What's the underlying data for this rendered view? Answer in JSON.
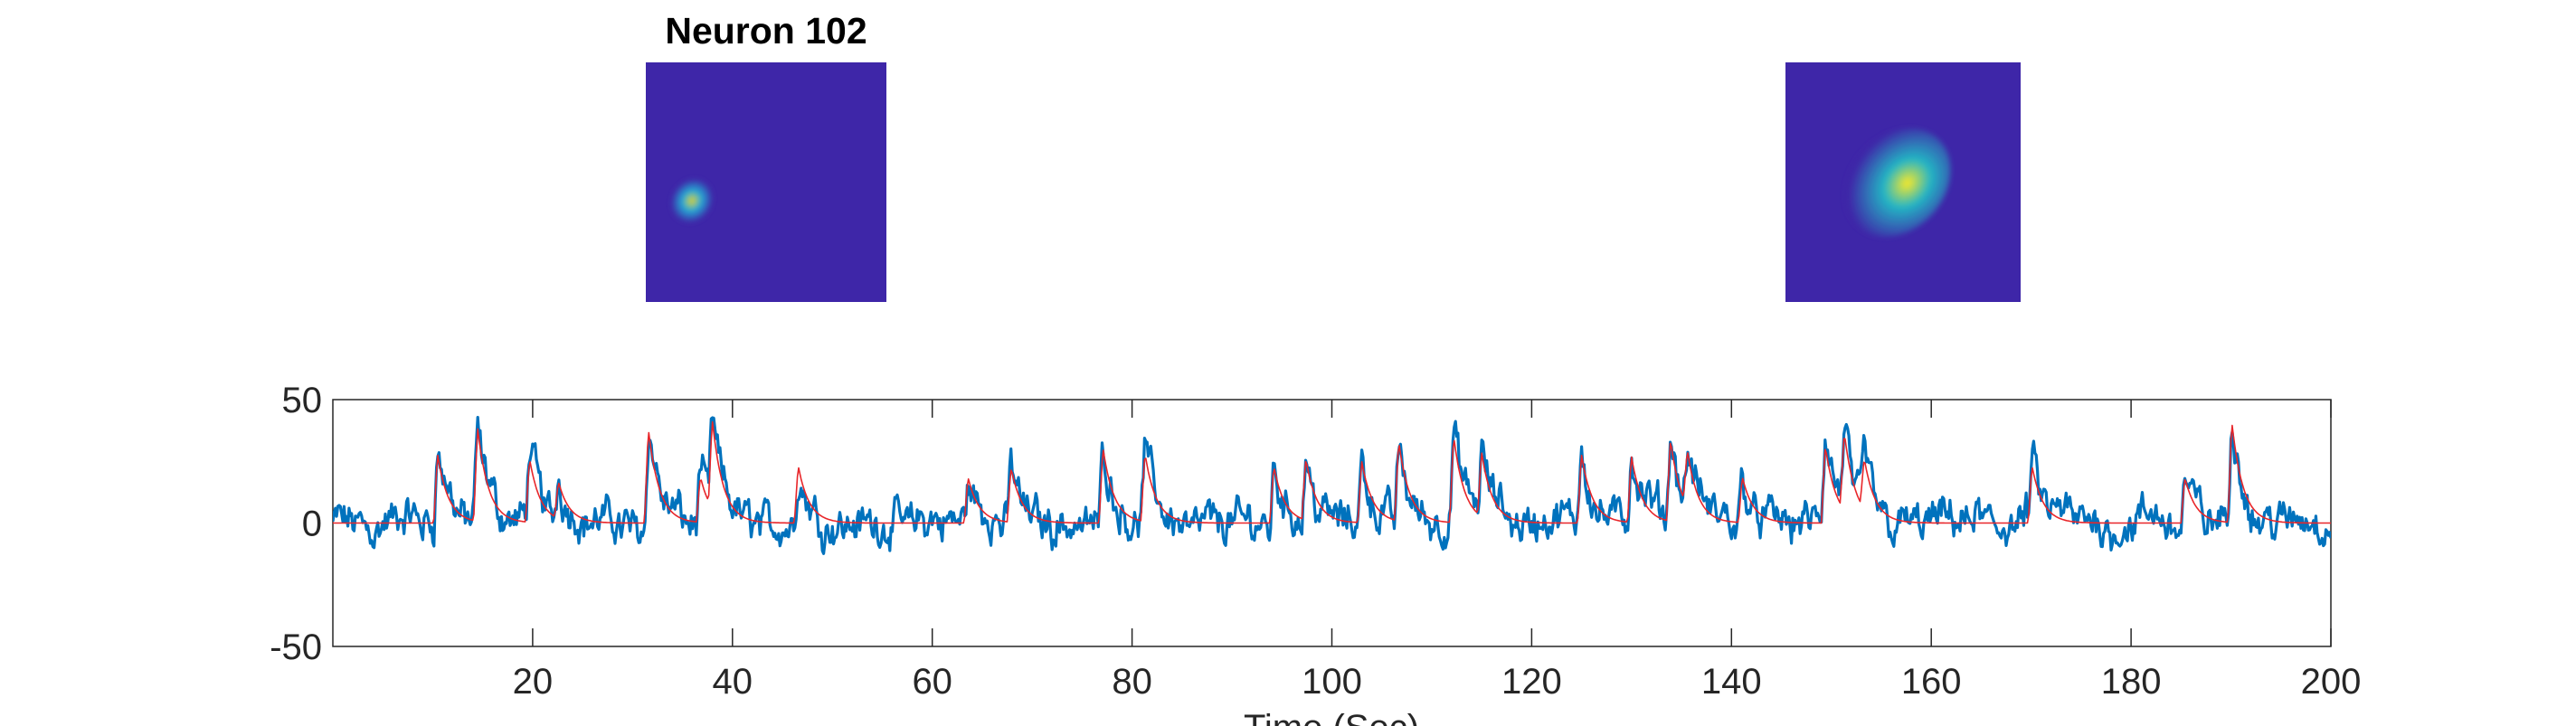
{
  "panels": {
    "left_title": "Neuron 102",
    "left_colors": {
      "background": "#3e26a8",
      "blob_mid": "#23a9d7",
      "blob_peak": "#e5d32b"
    },
    "right_colors": {
      "background": "#3e26a8",
      "blob_mid": "#24b5c4",
      "blob_peak": "#f9e926"
    }
  },
  "chart_data": {
    "type": "line",
    "title": "",
    "xlabel": "Time (Sec)",
    "ylabel": "",
    "xlim": [
      0,
      200
    ],
    "ylim": [
      -50,
      50
    ],
    "xticks": [
      20,
      40,
      60,
      80,
      100,
      120,
      140,
      160,
      180,
      200
    ],
    "yticks": [
      -50,
      0,
      50
    ],
    "grid": false,
    "series": [
      {
        "role": "raw-trace",
        "color": "#0072bd",
        "description_of_shape": "noisy fluorescence trace oscillating around 0 with transient peaks",
        "peaks": [
          {
            "x": 10.4,
            "y": 35
          },
          {
            "x": 14.4,
            "y": 38
          },
          {
            "x": 19.6,
            "y": 35
          },
          {
            "x": 22.5,
            "y": 20
          },
          {
            "x": 31.5,
            "y": 47
          },
          {
            "x": 36.7,
            "y": 23
          },
          {
            "x": 37.9,
            "y": 37
          },
          {
            "x": 46.5,
            "y": 22
          },
          {
            "x": 63.5,
            "y": 18
          },
          {
            "x": 67.8,
            "y": 27
          },
          {
            "x": 77.0,
            "y": 37
          },
          {
            "x": 81.2,
            "y": 33
          },
          {
            "x": 94.1,
            "y": 27
          },
          {
            "x": 97.3,
            "y": 29
          },
          {
            "x": 102.9,
            "y": 29
          },
          {
            "x": 106.6,
            "y": 33
          },
          {
            "x": 112.1,
            "y": 41
          },
          {
            "x": 114.9,
            "y": 29
          },
          {
            "x": 124.9,
            "y": 38
          },
          {
            "x": 129.9,
            "y": 30
          },
          {
            "x": 133.8,
            "y": 38
          },
          {
            "x": 135.5,
            "y": 26
          },
          {
            "x": 141.0,
            "y": 22
          },
          {
            "x": 149.3,
            "y": 36
          },
          {
            "x": 151.2,
            "y": 33
          },
          {
            "x": 153.2,
            "y": 25
          },
          {
            "x": 170.0,
            "y": 27
          },
          {
            "x": 185.3,
            "y": 21
          },
          {
            "x": 190.0,
            "y": 43
          }
        ]
      },
      {
        "role": "denoised-trace",
        "color": "#e8262a",
        "peaks": [
          {
            "x": 10.4,
            "y": 30
          },
          {
            "x": 14.4,
            "y": 41
          },
          {
            "x": 19.6,
            "y": 28
          },
          {
            "x": 22.5,
            "y": 16
          },
          {
            "x": 31.5,
            "y": 41
          },
          {
            "x": 36.7,
            "y": 20
          },
          {
            "x": 37.9,
            "y": 38
          },
          {
            "x": 46.5,
            "y": 25
          },
          {
            "x": 63.5,
            "y": 20
          },
          {
            "x": 67.8,
            "y": 24
          },
          {
            "x": 77.0,
            "y": 33
          },
          {
            "x": 81.2,
            "y": 30
          },
          {
            "x": 94.1,
            "y": 25
          },
          {
            "x": 97.3,
            "y": 27
          },
          {
            "x": 102.9,
            "y": 27
          },
          {
            "x": 106.6,
            "y": 35
          },
          {
            "x": 112.1,
            "y": 38
          },
          {
            "x": 114.9,
            "y": 28
          },
          {
            "x": 124.9,
            "y": 30
          },
          {
            "x": 129.9,
            "y": 29
          },
          {
            "x": 133.8,
            "y": 36
          },
          {
            "x": 135.5,
            "y": 24
          },
          {
            "x": 141.0,
            "y": 20
          },
          {
            "x": 149.3,
            "y": 34
          },
          {
            "x": 151.2,
            "y": 34
          },
          {
            "x": 153.2,
            "y": 22
          },
          {
            "x": 170.0,
            "y": 25
          },
          {
            "x": 185.3,
            "y": 20
          },
          {
            "x": 190.0,
            "y": 44
          }
        ]
      }
    ]
  }
}
